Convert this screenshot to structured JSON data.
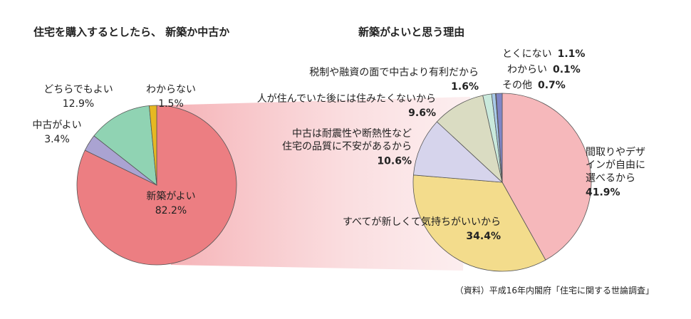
{
  "chart_data": [
    {
      "type": "pie",
      "title": "住宅を購入するとしたら、 新築か中古か",
      "categories": [
        "新築がよい",
        "中古がよい",
        "どちらでもよい",
        "わからない"
      ],
      "values": [
        82.2,
        3.4,
        12.9,
        1.5
      ],
      "value_labels": [
        "82.2%",
        "3.4%",
        "12.9%",
        "1.5%"
      ],
      "colors": [
        "#ec7e82",
        "#aaa3d2",
        "#90d3b3",
        "#e6b822"
      ]
    },
    {
      "type": "pie",
      "title": "新築がよいと思う理由",
      "categories": [
        "間取りやデザ\nインが自由に\n選べるから",
        "すべてが新しくて気持ちがいいから",
        "中古は耐震性や断熱性など\n住宅の品質に不安があるから",
        "人が住んでいた後には住みたくないから",
        "税制や融資の面で中古より有利だから",
        "その他",
        "わからい",
        "とくにない"
      ],
      "values": [
        41.9,
        34.4,
        10.6,
        9.6,
        1.6,
        0.7,
        0.1,
        1.1
      ],
      "value_labels": [
        "41.9%",
        "34.4%",
        "10.6%",
        "9.6%",
        "1.6%",
        "0.7%",
        "0.1%",
        "1.1%"
      ],
      "colors": [
        "#f6b8bb",
        "#f3dc8c",
        "#d6d4ec",
        "#dadcc2",
        "#c9e9dc",
        "#a8cae8",
        "#e4e4ee",
        "#7f86c6"
      ],
      "source": "（資料）平成16年内閣府「住宅に関する世論調査」"
    }
  ]
}
